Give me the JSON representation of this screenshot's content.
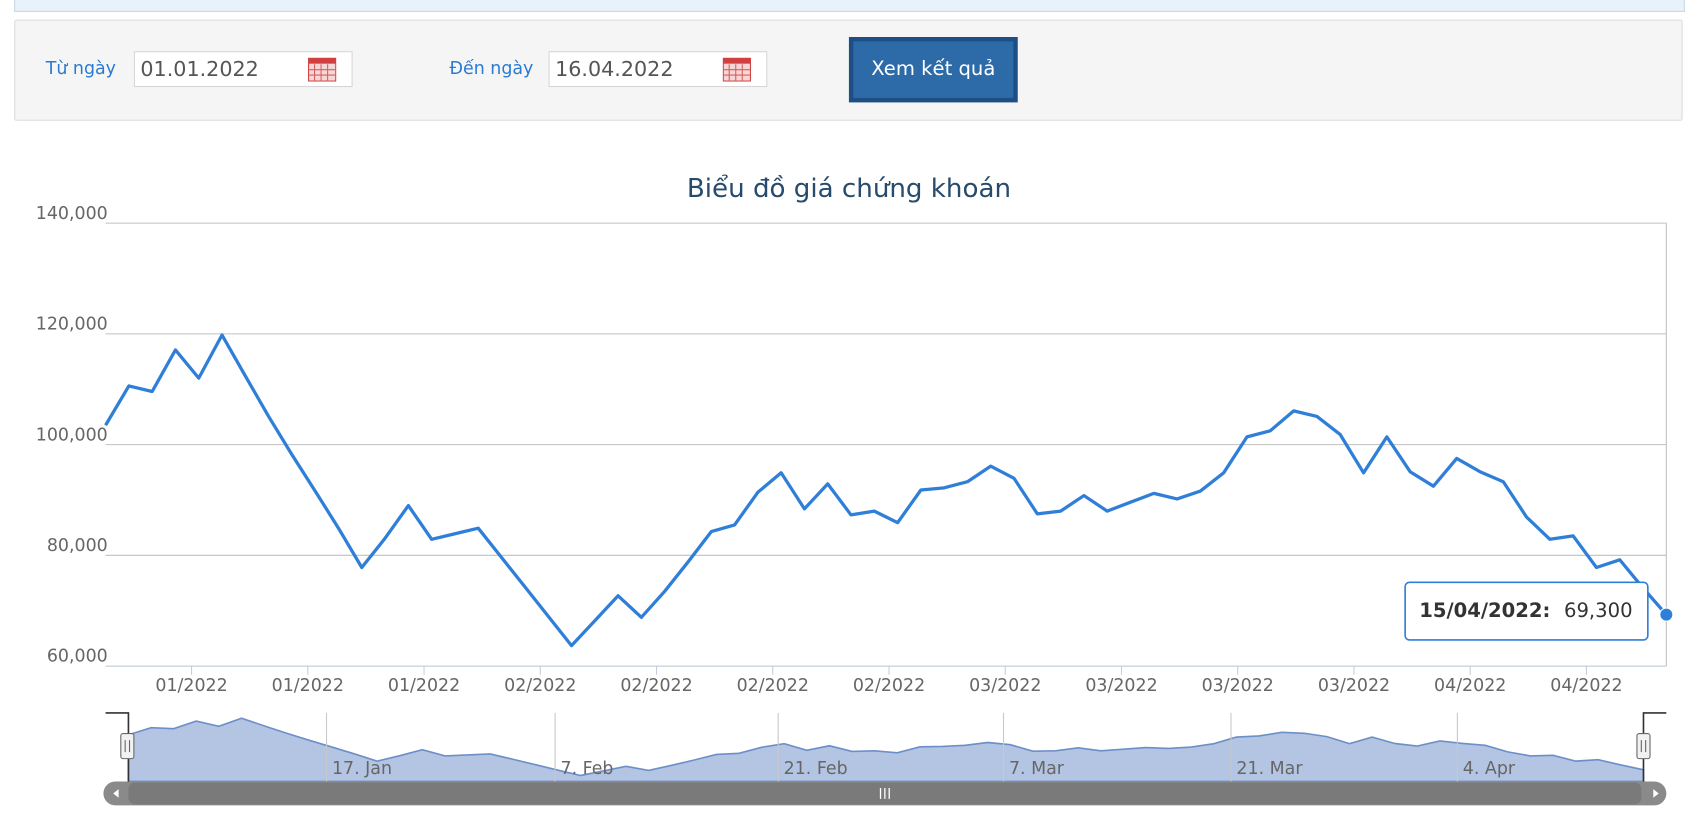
{
  "form": {
    "from_label": "Từ ngày",
    "from_value": "01.01.2022",
    "to_label": "Đến ngày",
    "to_value": "16.04.2022",
    "button": "Xem kết quả"
  },
  "chart_data": {
    "type": "line",
    "title": "Biểu đồ giá chứng khoán",
    "x_tick_labels": [
      "01/2022",
      "01/2022",
      "01/2022",
      "02/2022",
      "02/2022",
      "02/2022",
      "02/2022",
      "03/2022",
      "03/2022",
      "03/2022",
      "03/2022",
      "04/2022",
      "04/2022"
    ],
    "series": [
      {
        "color": "#2f7ed8",
        "values": [
          103500,
          110600,
          109600,
          117100,
          112000,
          119800,
          112400,
          105100,
          98200,
          91600,
          84900,
          77800,
          83100,
          89000,
          82900,
          83900,
          84900,
          79600,
          74300,
          69000,
          63700,
          68200,
          72700,
          68800,
          73500,
          78800,
          84300,
          85500,
          91400,
          94900,
          88400,
          92900,
          87300,
          88000,
          85900,
          91800,
          92200,
          93300,
          96100,
          93900,
          87500,
          88000,
          90800,
          88000,
          89600,
          91200,
          90200,
          91600,
          94900,
          101400,
          102500,
          106100,
          105100,
          101800,
          94900,
          101400,
          95100,
          92500,
          97500,
          95100,
          93300,
          86900,
          82900,
          83500,
          77800,
          79200,
          74100,
          69300
        ]
      }
    ],
    "ylim": [
      60000,
      140000
    ],
    "yticks": [
      {
        "value": 60000,
        "label": "60,000"
      },
      {
        "value": 80000,
        "label": "80,000"
      },
      {
        "value": 100000,
        "label": "100,000"
      },
      {
        "value": 120000,
        "label": "120,000"
      },
      {
        "value": 140000,
        "label": "140,000"
      }
    ],
    "grid": true,
    "tooltip": {
      "label": "15/04/2022:",
      "value_label": "69,300"
    },
    "navigator_labels": [
      "17. Jan",
      "7. Feb",
      "21. Feb",
      "7. Mar",
      "21. Mar",
      "4. Apr"
    ]
  }
}
